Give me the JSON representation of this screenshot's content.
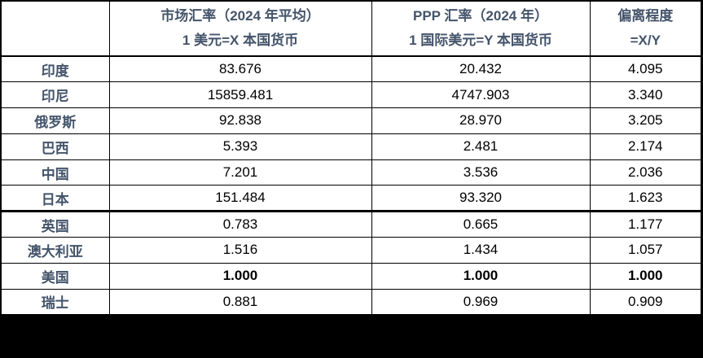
{
  "colors": {
    "page_background": "#000000",
    "table_background": "#ffffff",
    "border": "#000000",
    "header_text": "#44546A",
    "country_text": "#44546A",
    "value_text": "#000000"
  },
  "table": {
    "columns": [
      {
        "line1": "",
        "line2": ""
      },
      {
        "line1": "市场汇率（2024 年平均）",
        "line2": "1 美元=X 本国货币"
      },
      {
        "line1": "PPP 汇率（2024 年）",
        "line2": "1 国际美元=Y 本国货币"
      },
      {
        "line1": "偏离程度",
        "line2": "=X/Y"
      }
    ],
    "rows": [
      {
        "country": "印度",
        "market_rate": "83.676",
        "ppp_rate": "20.432",
        "deviation": "4.095",
        "bold": false,
        "thick_top_border": false
      },
      {
        "country": "印尼",
        "market_rate": "15859.481",
        "ppp_rate": "4747.903",
        "deviation": "3.340",
        "bold": false,
        "thick_top_border": false
      },
      {
        "country": "俄罗斯",
        "market_rate": "92.838",
        "ppp_rate": "28.970",
        "deviation": "3.205",
        "bold": false,
        "thick_top_border": false
      },
      {
        "country": "巴西",
        "market_rate": "5.393",
        "ppp_rate": "2.481",
        "deviation": "2.174",
        "bold": false,
        "thick_top_border": false
      },
      {
        "country": "中国",
        "market_rate": "7.201",
        "ppp_rate": "3.536",
        "deviation": "2.036",
        "bold": false,
        "thick_top_border": false
      },
      {
        "country": "日本",
        "market_rate": "151.484",
        "ppp_rate": "93.320",
        "deviation": "1.623",
        "bold": false,
        "thick_top_border": false
      },
      {
        "country": "英国",
        "market_rate": "0.783",
        "ppp_rate": "0.665",
        "deviation": "1.177",
        "bold": false,
        "thick_top_border": true
      },
      {
        "country": "澳大利亚",
        "market_rate": "1.516",
        "ppp_rate": "1.434",
        "deviation": "1.057",
        "bold": false,
        "thick_top_border": false
      },
      {
        "country": "美国",
        "market_rate": "1.000",
        "ppp_rate": "1.000",
        "deviation": "1.000",
        "bold": true,
        "thick_top_border": false
      },
      {
        "country": "瑞士",
        "market_rate": "0.881",
        "ppp_rate": "0.969",
        "deviation": "0.909",
        "bold": false,
        "thick_top_border": false
      }
    ]
  },
  "chart_data": {
    "type": "table",
    "title": "",
    "columns": [
      "",
      "市场汇率（2024 年平均） 1 美元=X 本国货币",
      "PPP 汇率（2024 年） 1 国际美元=Y 本国货币",
      "偏离程度 =X/Y"
    ],
    "rows": [
      [
        "印度",
        83.676,
        20.432,
        4.095
      ],
      [
        "印尼",
        15859.481,
        4747.903,
        3.34
      ],
      [
        "俄罗斯",
        92.838,
        28.97,
        3.205
      ],
      [
        "巴西",
        5.393,
        2.481,
        2.174
      ],
      [
        "中国",
        7.201,
        3.536,
        2.036
      ],
      [
        "日本",
        151.484,
        93.32,
        1.623
      ],
      [
        "英国",
        0.783,
        0.665,
        1.177
      ],
      [
        "澳大利亚",
        1.516,
        1.434,
        1.057
      ],
      [
        "美国",
        1.0,
        1.0,
        1.0
      ],
      [
        "瑞士",
        0.881,
        0.969,
        0.909
      ]
    ],
    "notes": "美国 row rendered bold; thick separator line above 英国 row"
  }
}
